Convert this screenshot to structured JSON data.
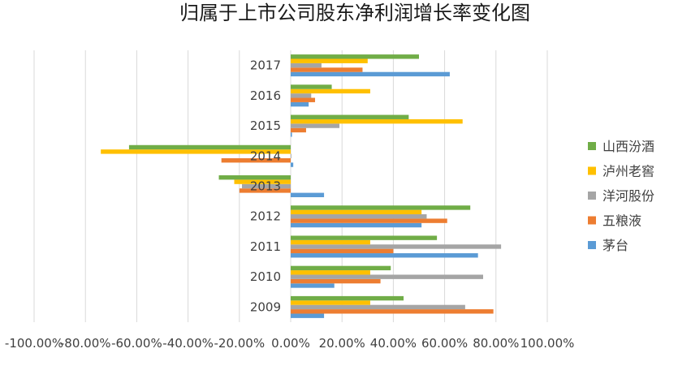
{
  "chart_data": {
    "type": "bar",
    "orientation": "horizontal",
    "title": "归属于上市公司股东净利润增长率变化图",
    "categories": [
      "2009",
      "2010",
      "2011",
      "2012",
      "2013",
      "2014",
      "2015",
      "2016",
      "2017"
    ],
    "xlim": [
      -100,
      100
    ],
    "x_ticks": [
      "-100.00%",
      "-80.00%",
      "-60.00%",
      "-40.00%",
      "-20.00%",
      "0.00%",
      "20.00%",
      "40.00%",
      "60.00%",
      "80.00%",
      "100.00%"
    ],
    "x_tick_values": [
      -100,
      -80,
      -60,
      -40,
      -20,
      0,
      20,
      40,
      60,
      80,
      100
    ],
    "grid": "vertical",
    "legend_position": "right",
    "series": [
      {
        "name": "茅台",
        "color": "#5b9bd5",
        "values": [
          13,
          17,
          73,
          51,
          13,
          1,
          0.5,
          7,
          62
        ]
      },
      {
        "name": "五粮液",
        "color": "#ed7d31",
        "values": [
          79,
          35,
          40,
          61,
          -20,
          -27,
          6,
          9.5,
          28
        ]
      },
      {
        "name": "洋河股份",
        "color": "#a5a5a5",
        "values": [
          68,
          75,
          82,
          53,
          -19,
          0,
          19,
          8,
          12
        ]
      },
      {
        "name": "泸州老窖",
        "color": "#ffc000",
        "values": [
          31,
          31,
          31,
          51,
          -22,
          -74,
          67,
          31,
          30
        ]
      },
      {
        "name": "山西汾酒",
        "color": "#70ad47",
        "values": [
          44,
          39,
          57,
          70,
          -28,
          -63,
          46,
          16,
          50
        ]
      }
    ],
    "legend_order": [
      "山西汾酒",
      "泸州老窖",
      "洋河股份",
      "五粮液",
      "茅台"
    ]
  }
}
